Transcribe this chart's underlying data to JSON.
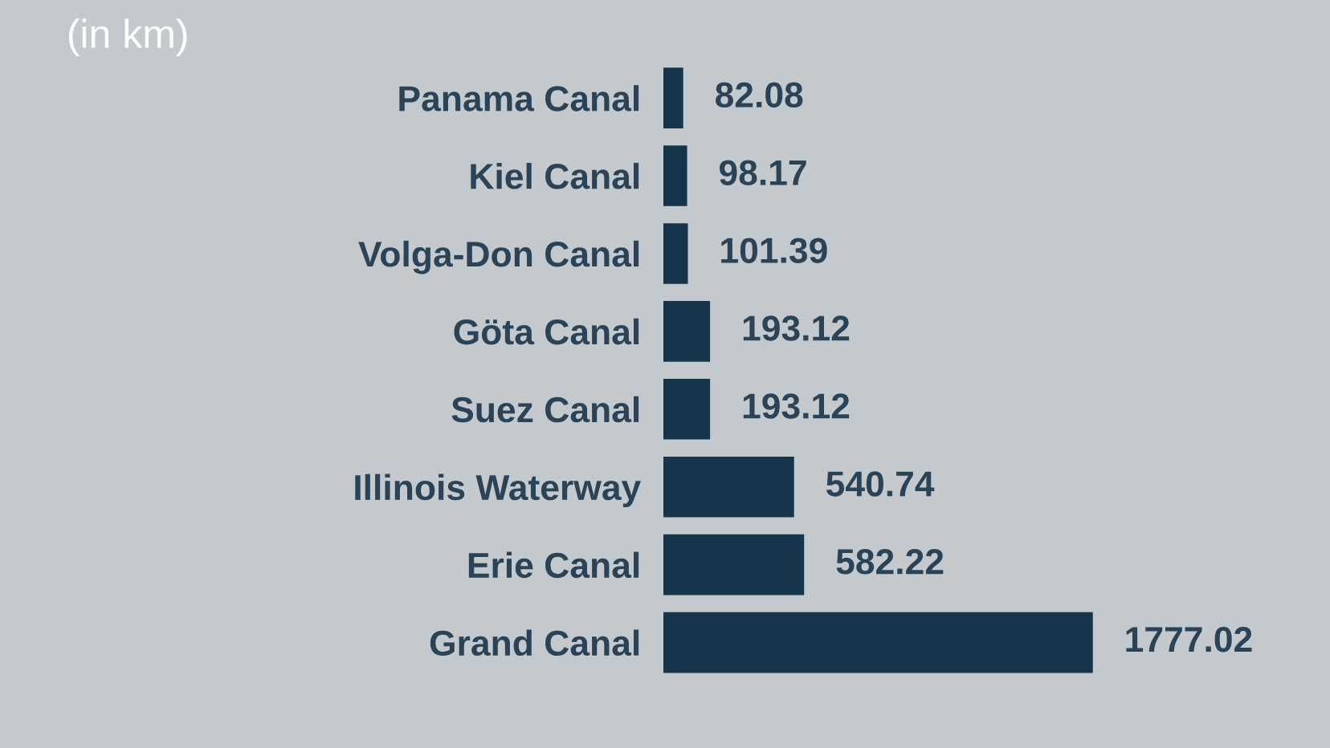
{
  "chart_data": {
    "type": "bar",
    "orientation": "horizontal",
    "subtitle": "(in km)",
    "categories": [
      "Panama Canal",
      "Kiel Canal",
      "Volga-Don Canal",
      "Göta Canal",
      "Suez Canal",
      "Illinois Waterway",
      "Erie Canal",
      "Grand Canal"
    ],
    "values": [
      82.08,
      98.17,
      101.39,
      193.12,
      193.12,
      540.74,
      582.22,
      1777.02
    ],
    "color": "#17354a",
    "data_labels": true,
    "grid": false,
    "legend": false
  }
}
